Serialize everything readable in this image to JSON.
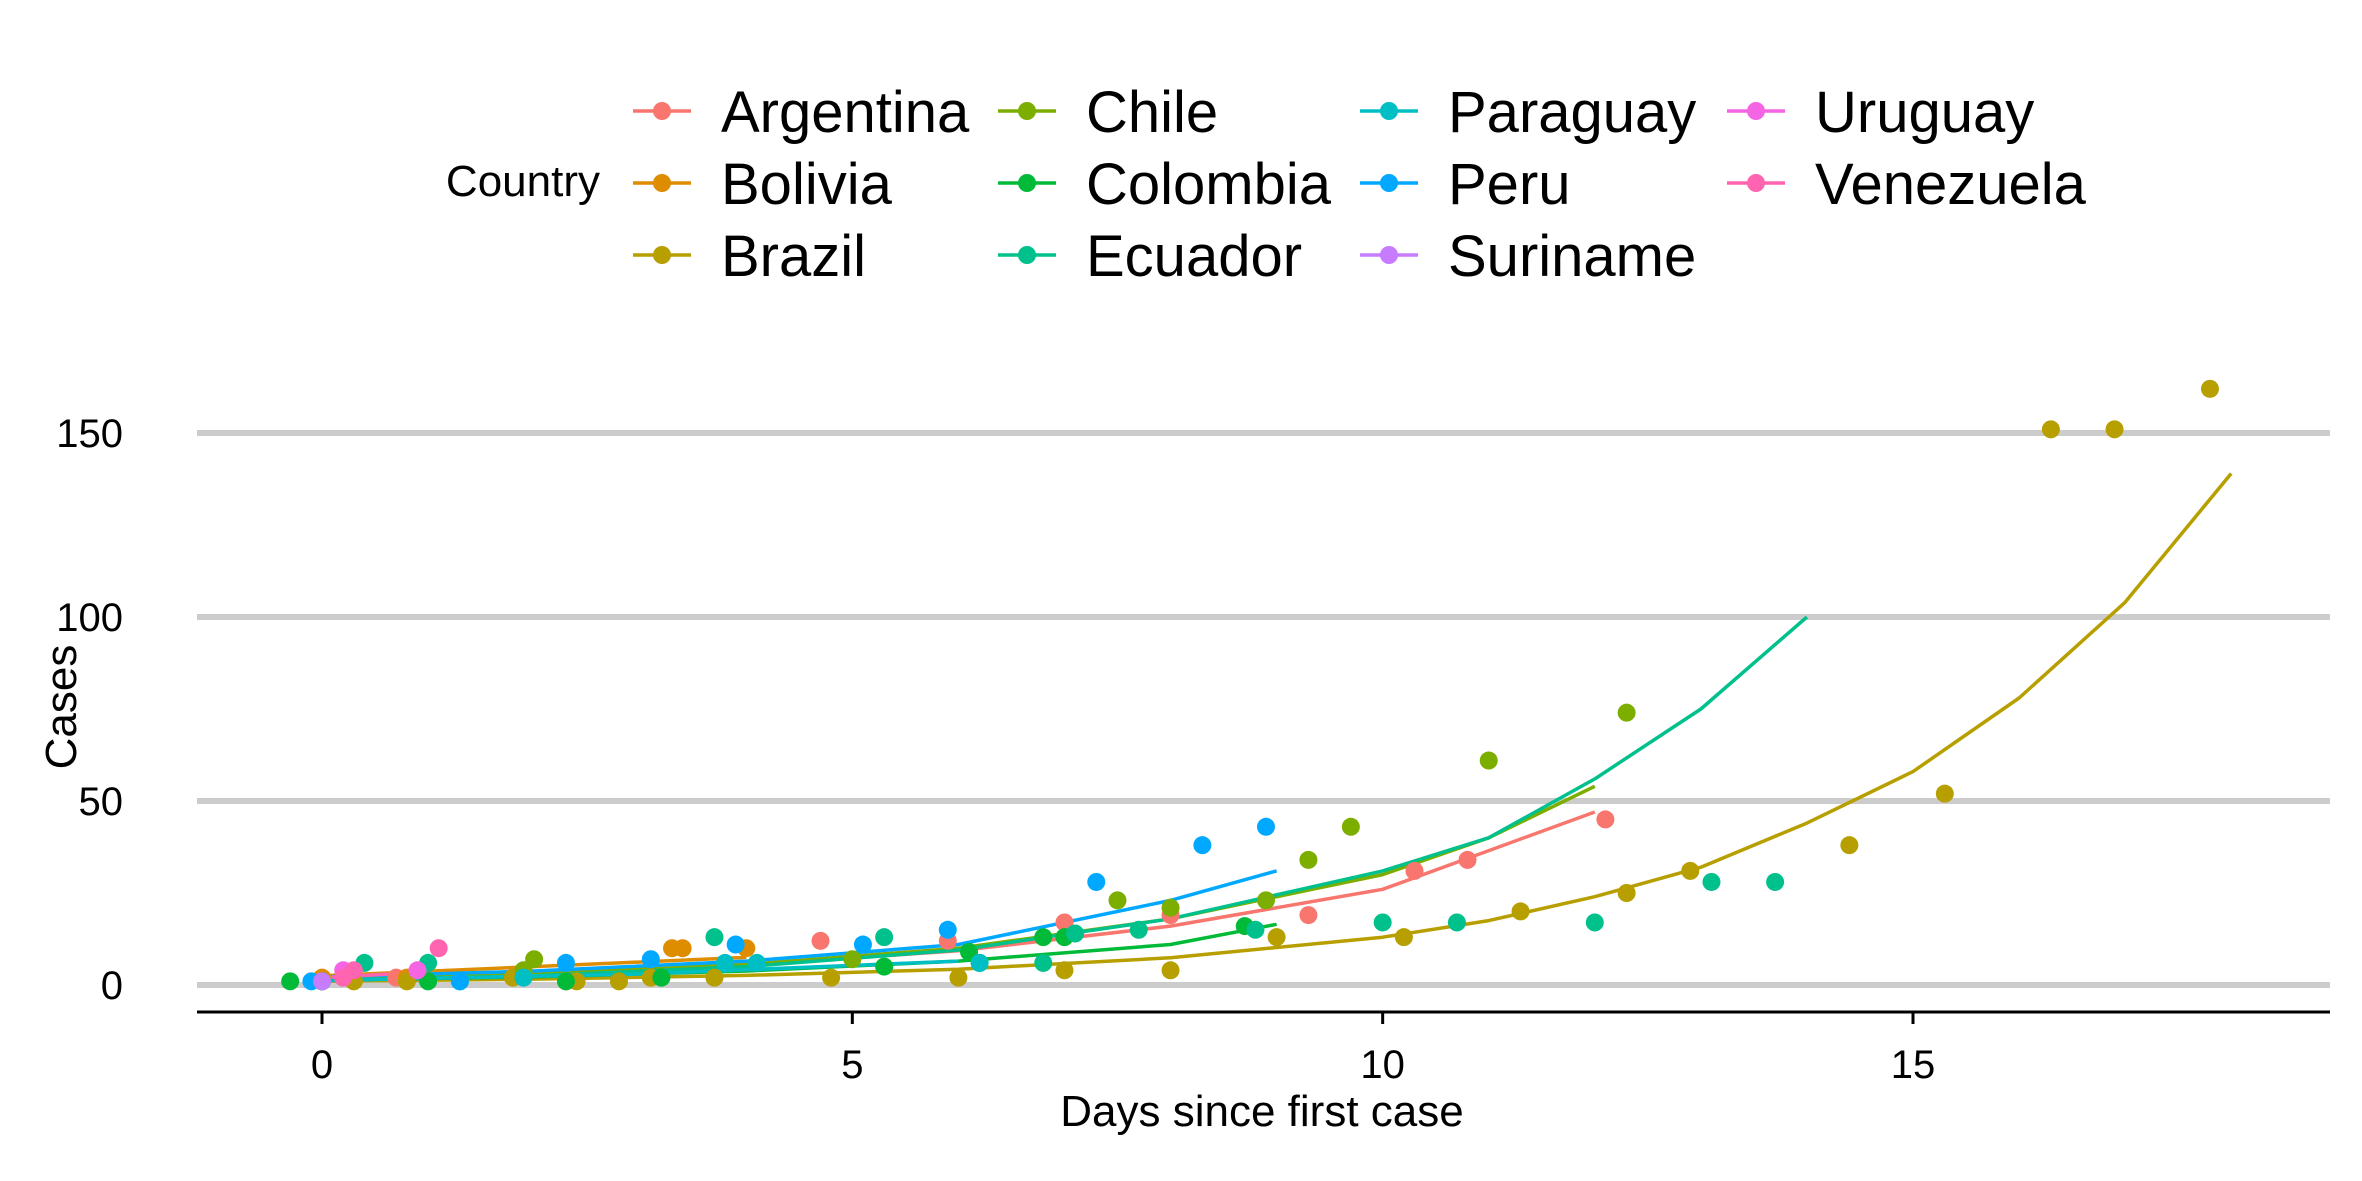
{
  "chart_data": {
    "type": "scatter",
    "xlabel": "Days since first case",
    "ylabel": "Cases",
    "xlim": [
      -1.2,
      18.9
    ],
    "ylim": [
      -7,
      170
    ],
    "x_ticks": [
      0,
      5,
      10,
      15
    ],
    "y_ticks": [
      0,
      50,
      100,
      150
    ],
    "grid": "horizontal major",
    "legend": {
      "title": "Country",
      "position": "top",
      "columns": [
        [
          "Argentina",
          "Bolivia",
          "Brazil"
        ],
        [
          "Chile",
          "Colombia",
          "Ecuador"
        ],
        [
          "Paraguay",
          "Peru",
          "Suriname"
        ],
        [
          "Uruguay",
          "Venezuela"
        ]
      ]
    },
    "series": [
      {
        "name": "Argentina",
        "color": "#F8766D",
        "points": [
          [
            0,
            1
          ],
          [
            0.7,
            2
          ],
          [
            2.3,
            1
          ],
          [
            4.7,
            12
          ],
          [
            5.9,
            12
          ],
          [
            7,
            17
          ],
          [
            8,
            19
          ],
          [
            9.3,
            19
          ],
          [
            10.3,
            31
          ],
          [
            10.8,
            34
          ],
          [
            12.1,
            45
          ]
        ],
        "fit": [
          [
            0,
            1.9
          ],
          [
            2,
            3.2
          ],
          [
            4,
            5.4
          ],
          [
            6,
            9.3
          ],
          [
            8,
            16
          ],
          [
            10,
            26
          ],
          [
            12,
            47
          ]
        ]
      },
      {
        "name": "Bolivia",
        "color": "#DE8C00",
        "points": [
          [
            0,
            2
          ],
          [
            0.8,
            2
          ],
          [
            3.3,
            10
          ],
          [
            3.4,
            10
          ],
          [
            4,
            10
          ]
        ],
        "fit": [
          [
            0,
            2.5
          ],
          [
            4,
            7.5
          ]
        ]
      },
      {
        "name": "Brazil",
        "color": "#B79F00",
        "points": [
          [
            0,
            1
          ],
          [
            0.3,
            1
          ],
          [
            0.8,
            1
          ],
          [
            1.8,
            2
          ],
          [
            2.4,
            1
          ],
          [
            2.8,
            1
          ],
          [
            3.1,
            2
          ],
          [
            3.7,
            2
          ],
          [
            4.8,
            2
          ],
          [
            6,
            2
          ],
          [
            7,
            4
          ],
          [
            8,
            4
          ],
          [
            9,
            13
          ],
          [
            10.2,
            13
          ],
          [
            11.3,
            20
          ],
          [
            12.3,
            25
          ],
          [
            12.9,
            31
          ],
          [
            14.4,
            38
          ],
          [
            15.3,
            52
          ],
          [
            16.3,
            151
          ],
          [
            16.9,
            151
          ],
          [
            17.8,
            162
          ]
        ],
        "fit": [
          [
            0,
            1
          ],
          [
            2,
            1.6
          ],
          [
            4,
            2.6
          ],
          [
            6,
            4.3
          ],
          [
            8,
            7.4
          ],
          [
            10,
            13
          ],
          [
            11,
            17.5
          ],
          [
            12,
            24
          ],
          [
            13,
            32
          ],
          [
            14,
            44
          ],
          [
            15,
            58
          ],
          [
            16,
            78
          ],
          [
            17,
            104
          ],
          [
            18,
            139
          ]
        ]
      },
      {
        "name": "Chile",
        "color": "#7CAE00",
        "points": [
          [
            0,
            1
          ],
          [
            1.9,
            4
          ],
          [
            2,
            7
          ],
          [
            5,
            7
          ],
          [
            7.5,
            23
          ],
          [
            8,
            21
          ],
          [
            8.9,
            23
          ],
          [
            9.3,
            34
          ],
          [
            9.7,
            43
          ],
          [
            11,
            61
          ],
          [
            12.3,
            74
          ]
        ],
        "fit": [
          [
            0,
            1.8
          ],
          [
            2,
            3.1
          ],
          [
            4,
            5.6
          ],
          [
            6,
            10
          ],
          [
            8,
            18
          ],
          [
            10,
            30
          ],
          [
            11,
            40
          ],
          [
            12,
            54
          ]
        ]
      },
      {
        "name": "Colombia",
        "color": "#00BA38",
        "points": [
          [
            -0.3,
            1
          ],
          [
            1,
            1
          ],
          [
            2.3,
            1
          ],
          [
            3.2,
            2
          ],
          [
            5.3,
            5
          ],
          [
            6.1,
            9
          ],
          [
            6.8,
            13
          ],
          [
            7,
            13
          ],
          [
            8.7,
            16
          ]
        ],
        "fit": [
          [
            0,
            1.3
          ],
          [
            2,
            2.2
          ],
          [
            4,
            3.8
          ],
          [
            6,
            6.5
          ],
          [
            8,
            11
          ],
          [
            9,
            16.5
          ]
        ]
      },
      {
        "name": "Ecuador",
        "color": "#00C08B",
        "points": [
          [
            0,
            1
          ],
          [
            0.4,
            6
          ],
          [
            1,
            6
          ],
          [
            3.7,
            13
          ],
          [
            5.3,
            13
          ],
          [
            6.2,
            6
          ],
          [
            6.8,
            6
          ],
          [
            7.1,
            14
          ],
          [
            7.7,
            15
          ],
          [
            8.8,
            15
          ],
          [
            10,
            17
          ],
          [
            10.7,
            17
          ],
          [
            12,
            17
          ],
          [
            13.1,
            28
          ],
          [
            13.7,
            28
          ]
        ],
        "fit": [
          [
            0,
            1.3
          ],
          [
            2,
            2.5
          ],
          [
            4,
            5
          ],
          [
            6,
            9.5
          ],
          [
            8,
            18
          ],
          [
            10,
            31
          ],
          [
            11,
            40
          ],
          [
            12,
            56
          ],
          [
            13,
            75
          ],
          [
            14,
            100
          ]
        ]
      },
      {
        "name": "Paraguay",
        "color": "#00BFC4",
        "points": [
          [
            0,
            1
          ],
          [
            1.3,
            1
          ],
          [
            1.9,
            2
          ],
          [
            3.8,
            6
          ],
          [
            4.1,
            6
          ],
          [
            6.2,
            6
          ]
        ],
        "fit": [
          [
            0,
            1.2
          ],
          [
            3,
            3
          ],
          [
            6,
            6.5
          ]
        ]
      },
      {
        "name": "Peru",
        "color": "#00A9FF",
        "points": [
          [
            -0.1,
            1
          ],
          [
            1.3,
            1
          ],
          [
            2.3,
            6
          ],
          [
            3.1,
            7
          ],
          [
            3.9,
            11
          ],
          [
            5.1,
            11
          ],
          [
            5.9,
            15
          ],
          [
            7.3,
            28
          ],
          [
            8.3,
            38
          ],
          [
            8.9,
            43
          ]
        ],
        "fit": [
          [
            0,
            2.2
          ],
          [
            2,
            3.8
          ],
          [
            4,
            6.5
          ],
          [
            6,
            11
          ],
          [
            8,
            23
          ],
          [
            9,
            31
          ]
        ]
      },
      {
        "name": "Suriname",
        "color": "#C77CFF",
        "points": [
          [
            0,
            1
          ]
        ],
        "fit": []
      },
      {
        "name": "Uruguay",
        "color": "#F564E3",
        "points": [
          [
            0.2,
            4
          ],
          [
            0.9,
            4
          ]
        ],
        "fit": []
      },
      {
        "name": "Venezuela",
        "color": "#FF64B0",
        "points": [
          [
            0.2,
            2
          ],
          [
            0.3,
            4
          ],
          [
            1.1,
            10
          ]
        ],
        "fit": [
          [
            0,
            2
          ],
          [
            1,
            3.5
          ]
        ]
      }
    ]
  }
}
